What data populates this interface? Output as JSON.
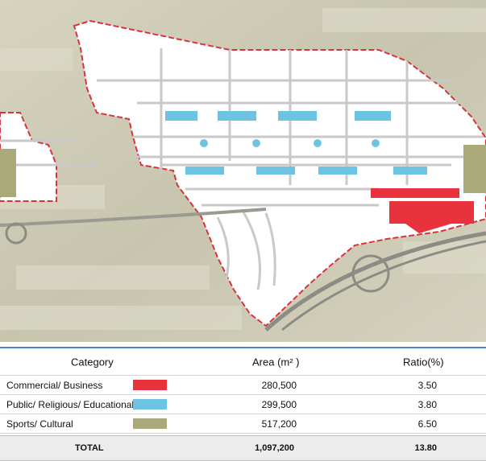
{
  "table": {
    "columns": [
      "Category",
      "Area (m² )",
      "Ratio(%)"
    ],
    "rows": [
      {
        "category": "Commercial/ Business",
        "color": "#e8323c",
        "area": "280,500",
        "ratio": "3.50"
      },
      {
        "category": "Public/ Religious/ Educational",
        "color": "#6cc4e2",
        "area": "299,500",
        "ratio": "3.80"
      },
      {
        "category": "Sports/ Cultural",
        "color": "#a9a97a",
        "area": "517,200",
        "ratio": "6.50"
      }
    ],
    "total": {
      "label": "TOTAL",
      "area": "1,097,200",
      "ratio": "13.80"
    }
  }
}
